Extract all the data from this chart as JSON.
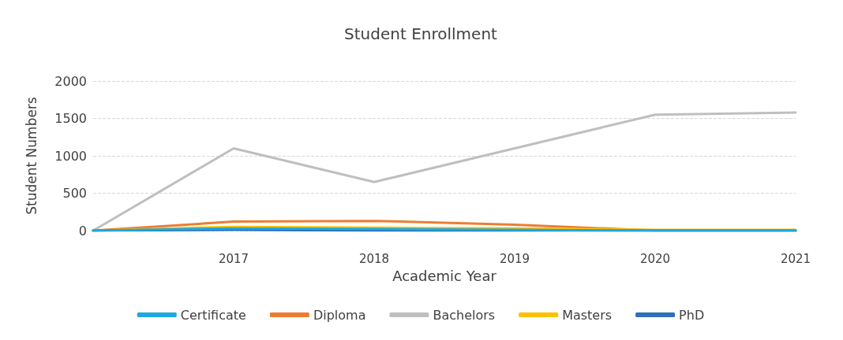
{
  "chart_data": {
    "type": "line",
    "title": "Student Enrollment",
    "xlabel": "Academic Year",
    "ylabel": "Student Numbers",
    "categories": [
      null,
      "2017",
      "2018",
      "2019",
      "2020",
      "2021"
    ],
    "series": [
      {
        "name": "Certificate",
        "color": "#1fa8e0",
        "values": [
          0,
          30,
          20,
          10,
          0,
          0
        ]
      },
      {
        "name": "Diploma",
        "color": "#ed7d31",
        "values": [
          0,
          120,
          130,
          80,
          0,
          0
        ]
      },
      {
        "name": "Bachelors",
        "color": "#bfbfbf",
        "values": [
          0,
          1100,
          650,
          1100,
          1550,
          1580
        ]
      },
      {
        "name": "Masters",
        "color": "#ffc000",
        "values": [
          0,
          50,
          40,
          30,
          10,
          10
        ]
      },
      {
        "name": "PhD",
        "color": "#2e6fb8",
        "values": [
          0,
          10,
          0,
          0,
          0,
          0
        ]
      }
    ],
    "ylim": [
      0,
      2000
    ],
    "yticks": [
      0,
      500,
      1000,
      1500,
      2000
    ],
    "grid": "y",
    "legend": "bottom",
    "marker": "none",
    "line_style": "solid"
  }
}
